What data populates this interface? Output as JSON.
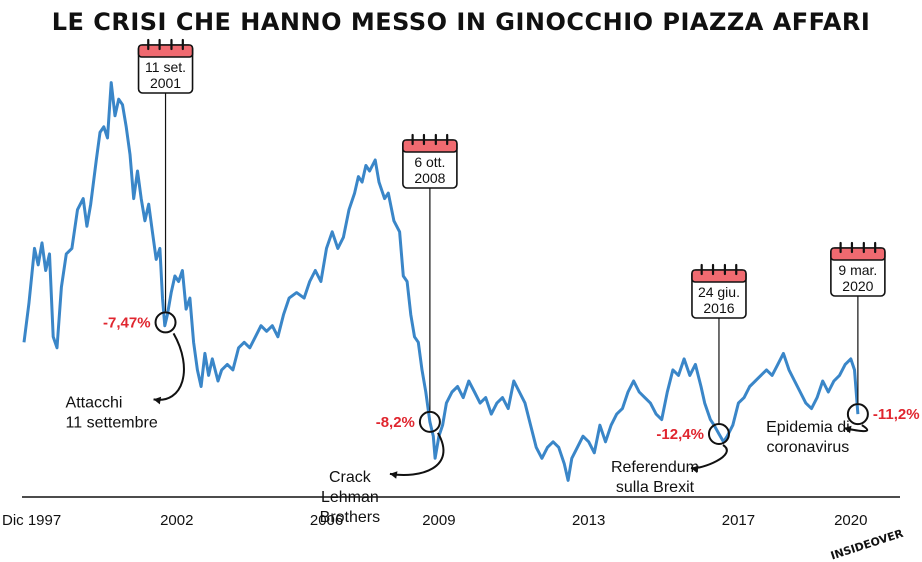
{
  "colors": {
    "line": "#3a86c8",
    "accent": "#e0262f",
    "calendar_header": "#f06a70",
    "text": "#111111"
  },
  "brand": "INSIDEOVER",
  "chart_data": {
    "type": "line",
    "title": "LE CRISI CHE HANNO MESSO IN GINOCCHIO PIAZZA AFFARI",
    "xlabel": "",
    "ylabel": "",
    "xlim": [
      1997.92,
      2020.3
    ],
    "ylim": [
      11000,
      51000
    ],
    "x_ticks": [
      {
        "value": 1997.92,
        "label": "Dic 1997"
      },
      {
        "value": 2002,
        "label": "2002"
      },
      {
        "value": 2006,
        "label": "2006"
      },
      {
        "value": 2009,
        "label": "2009"
      },
      {
        "value": 2013,
        "label": "2013"
      },
      {
        "value": 2017,
        "label": "2017"
      },
      {
        "value": 2020,
        "label": "2020"
      }
    ],
    "series": [
      {
        "values": [
          [
            1997.92,
            25000
          ],
          [
            1998.05,
            28500
          ],
          [
            1998.2,
            33500
          ],
          [
            1998.3,
            32000
          ],
          [
            1998.4,
            34000
          ],
          [
            1998.5,
            31500
          ],
          [
            1998.6,
            33000
          ],
          [
            1998.7,
            25500
          ],
          [
            1998.8,
            24500
          ],
          [
            1998.92,
            30000
          ],
          [
            1999.05,
            33000
          ],
          [
            1999.2,
            33500
          ],
          [
            1999.35,
            37000
          ],
          [
            1999.5,
            38000
          ],
          [
            1999.6,
            35500
          ],
          [
            1999.7,
            37500
          ],
          [
            1999.85,
            41500
          ],
          [
            1999.95,
            44000
          ],
          [
            2000.05,
            44500
          ],
          [
            2000.15,
            43500
          ],
          [
            2000.25,
            48500
          ],
          [
            2000.35,
            45500
          ],
          [
            2000.45,
            47000
          ],
          [
            2000.55,
            46500
          ],
          [
            2000.65,
            44500
          ],
          [
            2000.75,
            42000
          ],
          [
            2000.85,
            38000
          ],
          [
            2000.95,
            40500
          ],
          [
            2001.05,
            38000
          ],
          [
            2001.15,
            36000
          ],
          [
            2001.25,
            37500
          ],
          [
            2001.35,
            35000
          ],
          [
            2001.45,
            32500
          ],
          [
            2001.55,
            33500
          ],
          [
            2001.62,
            29000
          ],
          [
            2001.68,
            26500
          ],
          [
            2001.75,
            27500
          ],
          [
            2001.85,
            29500
          ],
          [
            2001.95,
            31000
          ],
          [
            2002.05,
            30500
          ],
          [
            2002.15,
            31500
          ],
          [
            2002.25,
            28000
          ],
          [
            2002.35,
            29000
          ],
          [
            2002.45,
            25000
          ],
          [
            2002.55,
            22500
          ],
          [
            2002.65,
            21000
          ],
          [
            2002.75,
            24000
          ],
          [
            2002.85,
            22000
          ],
          [
            2002.95,
            23500
          ],
          [
            2003.1,
            21500
          ],
          [
            2003.2,
            22500
          ],
          [
            2003.35,
            23000
          ],
          [
            2003.5,
            22500
          ],
          [
            2003.65,
            24500
          ],
          [
            2003.8,
            25000
          ],
          [
            2003.95,
            24500
          ],
          [
            2004.1,
            25500
          ],
          [
            2004.25,
            26500
          ],
          [
            2004.4,
            26000
          ],
          [
            2004.55,
            26500
          ],
          [
            2004.7,
            25500
          ],
          [
            2004.85,
            27500
          ],
          [
            2005.0,
            29000
          ],
          [
            2005.2,
            29500
          ],
          [
            2005.4,
            29000
          ],
          [
            2005.55,
            30500
          ],
          [
            2005.7,
            31500
          ],
          [
            2005.85,
            30500
          ],
          [
            2006.0,
            33500
          ],
          [
            2006.15,
            35000
          ],
          [
            2006.3,
            33500
          ],
          [
            2006.45,
            34500
          ],
          [
            2006.6,
            37000
          ],
          [
            2006.75,
            38500
          ],
          [
            2006.85,
            40000
          ],
          [
            2006.95,
            39500
          ],
          [
            2007.05,
            41000
          ],
          [
            2007.15,
            40500
          ],
          [
            2007.3,
            41500
          ],
          [
            2007.4,
            39500
          ],
          [
            2007.55,
            38000
          ],
          [
            2007.65,
            38500
          ],
          [
            2007.8,
            36000
          ],
          [
            2007.95,
            35000
          ],
          [
            2008.05,
            31000
          ],
          [
            2008.15,
            30500
          ],
          [
            2008.25,
            27500
          ],
          [
            2008.35,
            25500
          ],
          [
            2008.45,
            25000
          ],
          [
            2008.55,
            22500
          ],
          [
            2008.65,
            20500
          ],
          [
            2008.76,
            17800
          ],
          [
            2008.85,
            16500
          ],
          [
            2008.9,
            14500
          ],
          [
            2009.0,
            16500
          ],
          [
            2009.1,
            17500
          ],
          [
            2009.2,
            19500
          ],
          [
            2009.35,
            20500
          ],
          [
            2009.5,
            21000
          ],
          [
            2009.65,
            20000
          ],
          [
            2009.8,
            21500
          ],
          [
            2009.95,
            20500
          ],
          [
            2010.1,
            19500
          ],
          [
            2010.25,
            20000
          ],
          [
            2010.4,
            18500
          ],
          [
            2010.55,
            19500
          ],
          [
            2010.7,
            20000
          ],
          [
            2010.85,
            19000
          ],
          [
            2011.0,
            21500
          ],
          [
            2011.15,
            20500
          ],
          [
            2011.3,
            19500
          ],
          [
            2011.45,
            17500
          ],
          [
            2011.6,
            15500
          ],
          [
            2011.75,
            14500
          ],
          [
            2011.9,
            15500
          ],
          [
            2012.05,
            16000
          ],
          [
            2012.2,
            15500
          ],
          [
            2012.35,
            14000
          ],
          [
            2012.45,
            12500
          ],
          [
            2012.55,
            14500
          ],
          [
            2012.7,
            15500
          ],
          [
            2012.85,
            16500
          ],
          [
            2013.0,
            16000
          ],
          [
            2013.15,
            15000
          ],
          [
            2013.3,
            17500
          ],
          [
            2013.45,
            16000
          ],
          [
            2013.6,
            17500
          ],
          [
            2013.75,
            18500
          ],
          [
            2013.9,
            19000
          ],
          [
            2014.05,
            20500
          ],
          [
            2014.2,
            21500
          ],
          [
            2014.35,
            20500
          ],
          [
            2014.5,
            20000
          ],
          [
            2014.65,
            19500
          ],
          [
            2014.8,
            18500
          ],
          [
            2014.95,
            18000
          ],
          [
            2015.1,
            20500
          ],
          [
            2015.25,
            22500
          ],
          [
            2015.4,
            22000
          ],
          [
            2015.55,
            23500
          ],
          [
            2015.7,
            22000
          ],
          [
            2015.85,
            23000
          ],
          [
            2016.0,
            21000
          ],
          [
            2016.1,
            19500
          ],
          [
            2016.25,
            18000
          ],
          [
            2016.35,
            17500
          ],
          [
            2016.48,
            16700
          ],
          [
            2016.6,
            16000
          ],
          [
            2016.7,
            16500
          ],
          [
            2016.85,
            17500
          ],
          [
            2017.0,
            19500
          ],
          [
            2017.15,
            20000
          ],
          [
            2017.3,
            21000
          ],
          [
            2017.45,
            21500
          ],
          [
            2017.6,
            22000
          ],
          [
            2017.75,
            22500
          ],
          [
            2017.9,
            22000
          ],
          [
            2018.05,
            23000
          ],
          [
            2018.2,
            24000
          ],
          [
            2018.35,
            22500
          ],
          [
            2018.5,
            21500
          ],
          [
            2018.65,
            20500
          ],
          [
            2018.8,
            19500
          ],
          [
            2018.95,
            19000
          ],
          [
            2019.1,
            20000
          ],
          [
            2019.25,
            21500
          ],
          [
            2019.4,
            20500
          ],
          [
            2019.55,
            21500
          ],
          [
            2019.7,
            22000
          ],
          [
            2019.85,
            23000
          ],
          [
            2020.0,
            23500
          ],
          [
            2020.1,
            22500
          ],
          [
            2020.19,
            18500
          ]
        ]
      }
    ],
    "annotations": [
      {
        "x": 2001.7,
        "y": 26800,
        "date": [
          "11 set.",
          "2001"
        ],
        "change": "-7,47%",
        "event": [
          "Attacchi",
          "11 settembre"
        ]
      },
      {
        "x": 2008.76,
        "y": 17800,
        "date": [
          "6 ott.",
          "2008"
        ],
        "change": "-8,2%",
        "event": [
          "Crack",
          "Lehman",
          "Brothers"
        ]
      },
      {
        "x": 2016.48,
        "y": 16700,
        "date": [
          "24 giu.",
          "2016"
        ],
        "change": "-12,4%",
        "event": [
          "Referendum",
          "sulla Brexit"
        ]
      },
      {
        "x": 2020.19,
        "y": 18500,
        "date": [
          "9 mar.",
          "2020"
        ],
        "change": "-11,2%",
        "event": [
          "Epidemia di",
          "coronavirus"
        ]
      }
    ]
  }
}
